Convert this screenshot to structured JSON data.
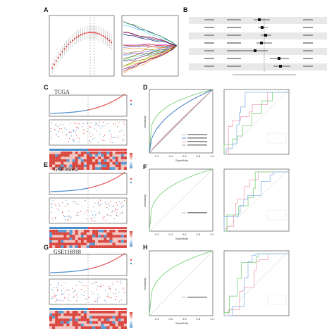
{
  "figure": {
    "panel_labels": [
      "A",
      "B",
      "C",
      "D",
      "E",
      "F",
      "G",
      "H"
    ],
    "cohorts": [
      "TCGA",
      "GSE36602",
      "GSE116918"
    ]
  },
  "roc_panels": [
    {
      "panel": "D",
      "xlabel": "Specificity",
      "ylabel": "Sensitivity",
      "xticks": [
        "0.2",
        "0.4",
        "0.6",
        "0.8",
        "1.0"
      ]
    },
    {
      "panel": "F",
      "xlabel": "Specificity",
      "ylabel": "Sensitivity",
      "xticks": [
        "0.2",
        "0.4",
        "0.6",
        "0.8",
        "1.0"
      ]
    },
    {
      "panel": "H",
      "xlabel": "Specificity",
      "ylabel": "Sensitivity",
      "xticks": [
        "0.2",
        "0.4",
        "0.6",
        "0.8",
        "1.0"
      ]
    }
  ],
  "colors": {
    "risk_high": "#e05050",
    "risk_low": "#4a8fd0",
    "heat_high": "#d9463e",
    "heat_low": "#5b9bd5",
    "roc_green": "#7bd17a",
    "roc_blue": "#2e6fc0",
    "roc_pink": "#f0a0b0",
    "roc_gray": "#999999"
  }
}
